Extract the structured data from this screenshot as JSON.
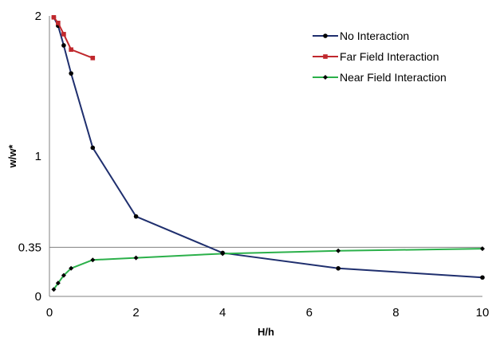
{
  "chart_data": {
    "type": "line",
    "title": "",
    "xlabel": "H/h",
    "ylabel": "w/w*",
    "xlim": [
      0,
      10
    ],
    "ylim": [
      0,
      2
    ],
    "x_ticks": [
      "0",
      "2",
      "4",
      "6",
      "8",
      "10"
    ],
    "y_ticks": [
      {
        "value": 0,
        "label": "0"
      },
      {
        "value": 0.35,
        "label": "0.35"
      },
      {
        "value": 1,
        "label": "1"
      },
      {
        "value": 2,
        "label": "2"
      }
    ],
    "reference_line": {
      "y": 0.35,
      "color": "#808080"
    },
    "legend_position": "top-right",
    "series": [
      {
        "name": "No Interaction",
        "color": "#1f2f6e",
        "marker": "circle",
        "x": [
          0.1,
          0.2,
          0.33,
          0.5,
          1,
          2,
          4,
          6.67,
          10
        ],
        "y": [
          1.99,
          1.93,
          1.79,
          1.59,
          1.06,
          0.57,
          0.31,
          0.2,
          0.135
        ]
      },
      {
        "name": "Far Field Interaction",
        "color": "#c0282d",
        "marker": "square",
        "x": [
          0.1,
          0.2,
          0.33,
          0.5,
          1
        ],
        "y": [
          1.99,
          1.95,
          1.87,
          1.76,
          1.7
        ]
      },
      {
        "name": "Near Field Interaction",
        "color": "#2bb04a",
        "marker": "diamond",
        "x": [
          0.1,
          0.2,
          0.33,
          0.5,
          1,
          2,
          4,
          6.67,
          10
        ],
        "y": [
          0.05,
          0.095,
          0.15,
          0.2,
          0.26,
          0.275,
          0.305,
          0.325,
          0.34
        ]
      }
    ]
  }
}
